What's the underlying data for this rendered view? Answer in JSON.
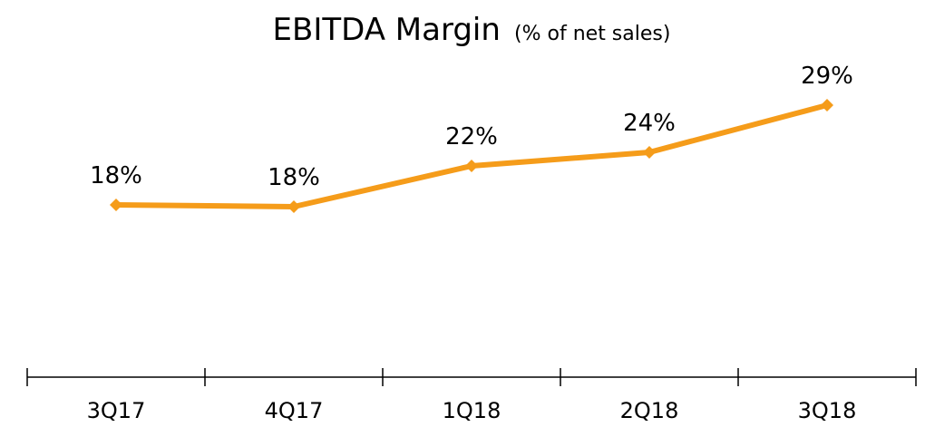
{
  "chart_data": {
    "type": "line",
    "title": "EBITDA Margin",
    "subtitle": "(% of net sales)",
    "categories": [
      "3Q17",
      "4Q17",
      "1Q18",
      "2Q18",
      "3Q18"
    ],
    "series": [
      {
        "color": "#f59c1a",
        "values": [
          18.0,
          17.8,
          22.3,
          23.8,
          29.0
        ],
        "value_labels": [
          "18%",
          "18%",
          "22%",
          "24%",
          "29%"
        ]
      }
    ],
    "ylim": [
      0,
      30
    ]
  }
}
